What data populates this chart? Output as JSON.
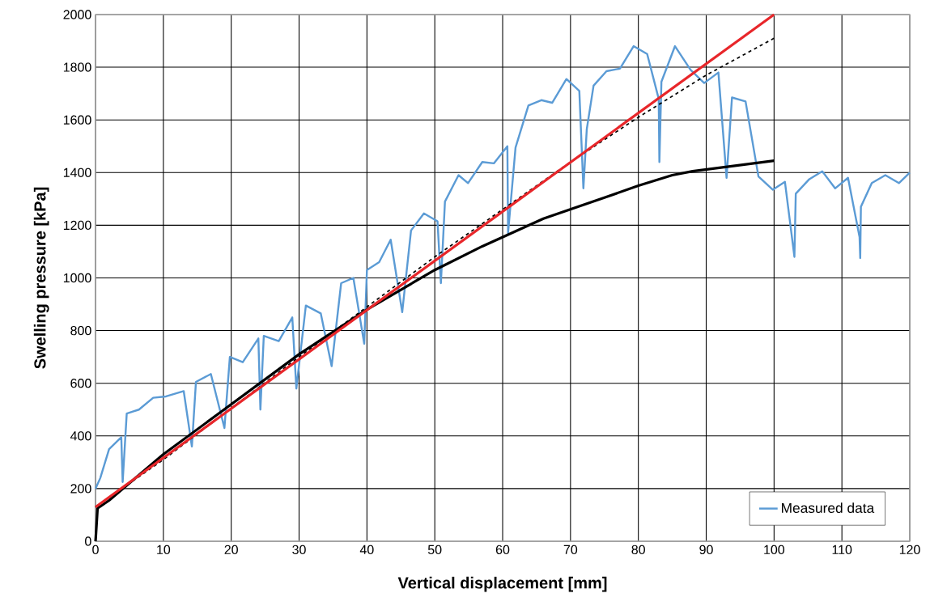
{
  "chart_data": {
    "type": "line",
    "xlabel": "Vertical displacement [mm]",
    "ylabel": "Swelling pressure [kPa]",
    "xlim": [
      0,
      120
    ],
    "ylim": [
      0,
      2000
    ],
    "xticks": [
      0,
      10,
      20,
      30,
      40,
      50,
      60,
      70,
      80,
      90,
      100,
      110,
      120
    ],
    "yticks": [
      0,
      200,
      400,
      600,
      800,
      1000,
      1200,
      1400,
      1600,
      1800,
      2000
    ],
    "grid": true,
    "legend": "bottom right",
    "marker": "none",
    "series": [
      {
        "name": "Measured data",
        "color": "#5b9bd5",
        "line_style": "solid",
        "x": [
          0,
          0.7,
          2,
          3.8,
          4,
          4.6,
          6.4,
          8.5,
          10.4,
          13,
          14.2,
          14.8,
          17,
          19,
          19.8,
          21.7,
          24,
          24.3,
          24.8,
          27,
          29,
          29.6,
          31,
          33.2,
          34.8,
          36.2,
          38,
          39.6,
          40,
          41.8,
          43.5,
          45.2,
          46.5,
          48.4,
          50.4,
          50.9,
          51.5,
          53.5,
          54.9,
          57,
          58.7,
          60.7,
          60.8,
          61.9,
          63.8,
          65.7,
          67.3,
          69.4,
          71.3,
          71.9,
          72.4,
          73.4,
          75.3,
          77.3,
          79.3,
          81.3,
          83,
          83.1,
          83.4,
          85.4,
          87.7,
          89.7,
          91.8,
          93,
          93.8,
          95.8,
          97.7,
          99.8,
          101.6,
          103,
          103.2,
          105.2,
          107.1,
          109,
          110.9,
          112.6,
          112.7,
          112.8,
          114.4,
          116.4,
          118.4,
          120
        ],
        "values": [
          200,
          240,
          350,
          395,
          225,
          485,
          500,
          545,
          550,
          570,
          360,
          605,
          635,
          430,
          700,
          680,
          770,
          500,
          780,
          760,
          850,
          580,
          895,
          865,
          665,
          980,
          1000,
          750,
          1030,
          1060,
          1145,
          870,
          1180,
          1245,
          1215,
          980,
          1290,
          1390,
          1360,
          1440,
          1435,
          1500,
          1170,
          1495,
          1655,
          1675,
          1665,
          1755,
          1710,
          1340,
          1565,
          1730,
          1785,
          1795,
          1880,
          1850,
          1680,
          1440,
          1745,
          1880,
          1790,
          1740,
          1780,
          1380,
          1685,
          1670,
          1385,
          1335,
          1365,
          1080,
          1320,
          1375,
          1405,
          1340,
          1380,
          1155,
          1075,
          1270,
          1360,
          1390,
          1360,
          1400
        ]
      },
      {
        "color": "#000000",
        "line_style": "solid",
        "x": [
          0,
          0.3,
          2,
          10,
          20,
          30,
          40,
          50,
          57,
          66,
          75,
          80,
          85,
          88,
          100
        ],
        "values": [
          0,
          125,
          155,
          330,
          520,
          710,
          880,
          1030,
          1120,
          1225,
          1305,
          1350,
          1390,
          1405,
          1445
        ]
      },
      {
        "color": "#000000",
        "line_style": "dashed",
        "x": [
          0,
          10,
          30,
          40,
          50,
          60,
          70,
          80,
          90,
          100
        ],
        "values": [
          130,
          310,
          700,
          890,
          1080,
          1260,
          1440,
          1610,
          1770,
          1910
        ]
      },
      {
        "color": "#e8262a",
        "line_style": "solid",
        "x": [
          0,
          100
        ],
        "values": [
          130,
          2000
        ]
      }
    ]
  }
}
